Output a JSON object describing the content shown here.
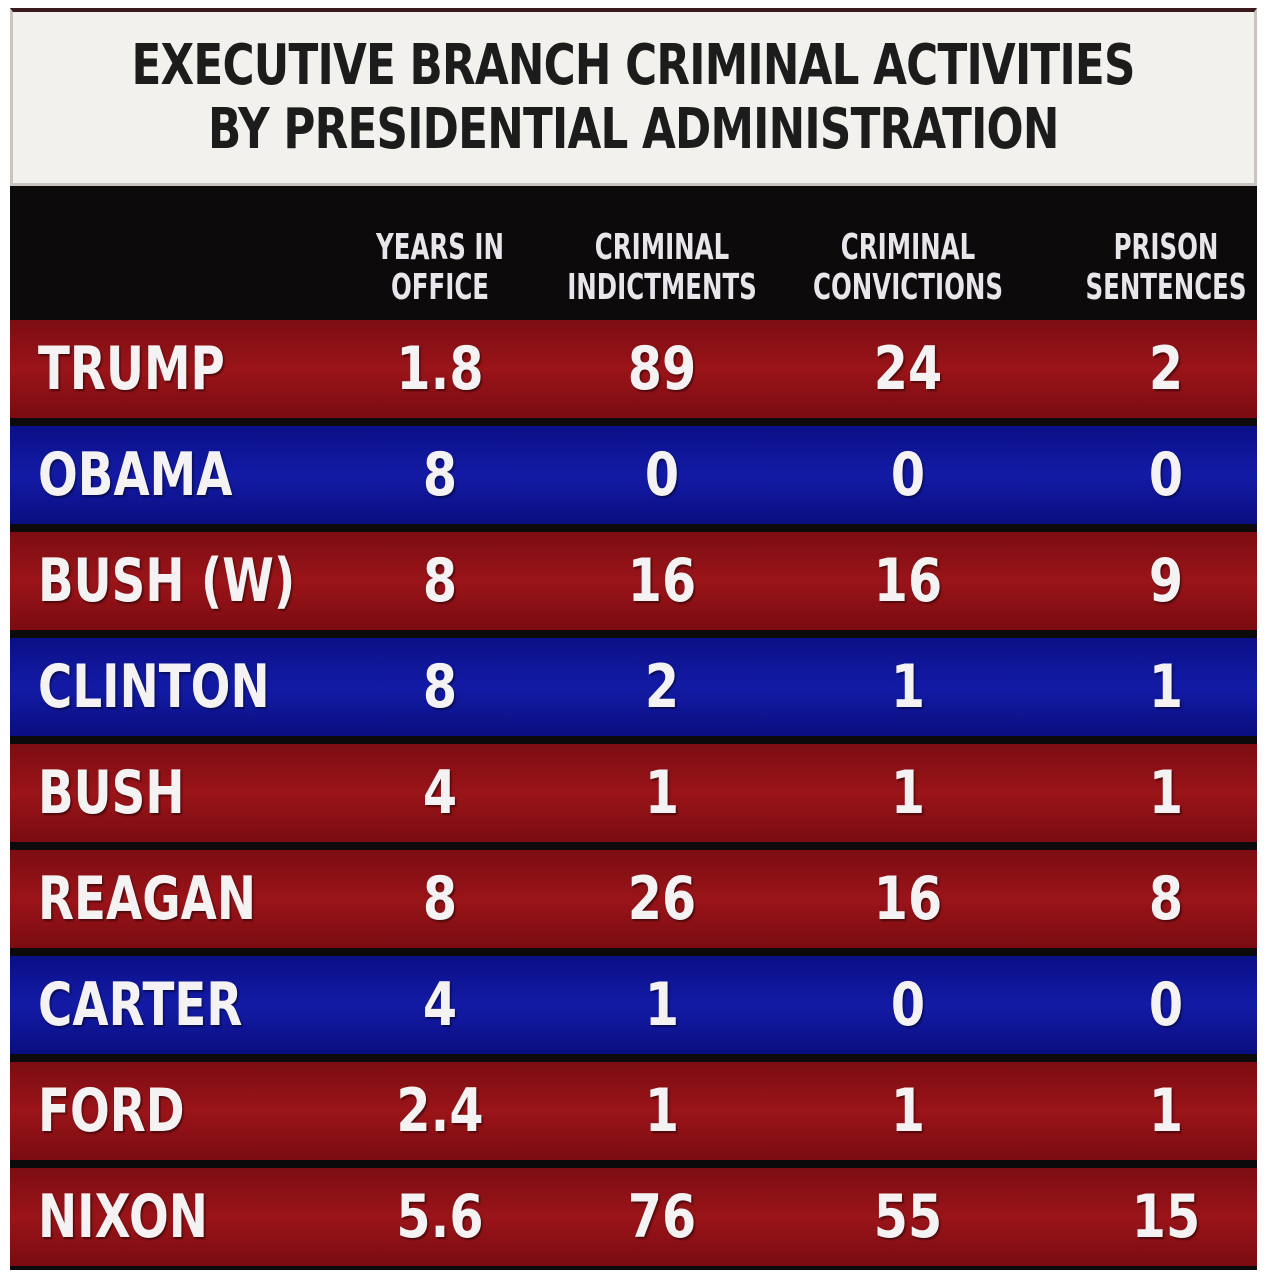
{
  "chart_data": {
    "type": "table",
    "title_lines": [
      "EXECUTIVE BRANCH CRIMINAL ACTIVITIES",
      "BY PRESIDENTIAL ADMINISTRATION"
    ],
    "columns": [
      "YEARS IN\nOFFICE",
      "CRIMINAL\nINDICTMENTS",
      "CRIMINAL\nCONVICTIONS",
      "PRISON\nSENTENCES"
    ],
    "rows": [
      {
        "name": "TRUMP",
        "color": "red",
        "values": [
          "1.8",
          "89",
          "24",
          "2"
        ]
      },
      {
        "name": "OBAMA",
        "color": "blue",
        "values": [
          "8",
          "0",
          "0",
          "0"
        ]
      },
      {
        "name": "BUSH (W)",
        "color": "red",
        "values": [
          "8",
          "16",
          "16",
          "9"
        ]
      },
      {
        "name": "CLINTON",
        "color": "blue",
        "values": [
          "8",
          "2",
          "1",
          "1"
        ]
      },
      {
        "name": "BUSH",
        "color": "red",
        "values": [
          "4",
          "1",
          "1",
          "1"
        ]
      },
      {
        "name": "REAGAN",
        "color": "red",
        "values": [
          "8",
          "26",
          "16",
          "8"
        ]
      },
      {
        "name": "CARTER",
        "color": "blue",
        "values": [
          "4",
          "1",
          "0",
          "0"
        ]
      },
      {
        "name": "FORD",
        "color": "red",
        "values": [
          "2.4",
          "1",
          "1",
          "1"
        ]
      },
      {
        "name": "NIXON",
        "color": "red",
        "values": [
          "5.6",
          "76",
          "55",
          "15"
        ]
      }
    ],
    "colors": {
      "red": "#9a1419",
      "blue": "#131ba6"
    }
  }
}
